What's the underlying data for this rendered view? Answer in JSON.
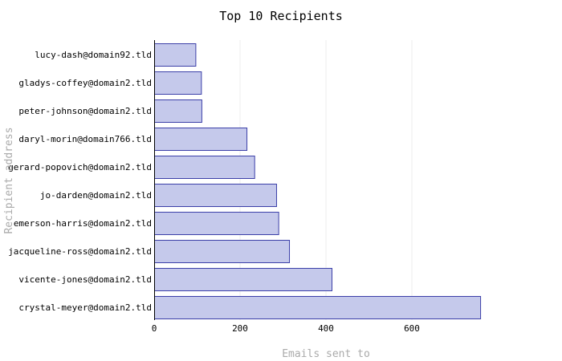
{
  "chart_data": {
    "type": "bar",
    "orientation": "horizontal",
    "title": "Top 10 Recipients",
    "xlabel": "Emails sent to",
    "ylabel": "Recipient address",
    "categories": [
      "lucy-dash@domain92.tld",
      "gladys-coffey@domain2.tld",
      "peter-johnson@domain2.tld",
      "daryl-morin@domain766.tld",
      "gerard-popovich@domain2.tld",
      "jo-darden@domain2.tld",
      "emerson-harris@domain2.tld",
      "jacqueline-ross@domain2.tld",
      "vicente-jones@domain2.tld",
      "crystal-meyer@domain2.tld"
    ],
    "values": [
      97,
      110,
      111,
      216,
      234,
      285,
      290,
      315,
      414,
      760
    ],
    "xticks": [
      "0",
      "200",
      "400",
      "600"
    ],
    "xlim": [
      0,
      760
    ],
    "grid": true,
    "legend": "none",
    "colors": {
      "bar_fill": "#c5c9eb",
      "bar_stroke": "#3b3fa8",
      "grid": "#eeeeee",
      "axis": "#000000",
      "axis_label": "#aaaaaa"
    }
  }
}
